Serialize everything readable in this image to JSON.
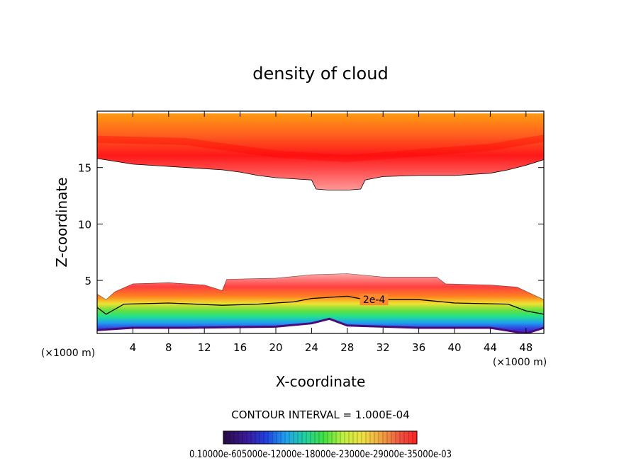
{
  "chart_data": {
    "type": "heatmap",
    "title": "density of cloud",
    "xlabel": "X-coordinate",
    "ylabel": "Z-coordinate",
    "x_unit_left": "(×1000 m)",
    "x_unit_right": "(×1000 m)",
    "xlim": [
      0,
      50
    ],
    "ylim": [
      0.3,
      20
    ],
    "xticks": [
      4,
      8,
      12,
      16,
      20,
      24,
      28,
      32,
      36,
      40,
      44,
      48
    ],
    "yticks": [
      5,
      10,
      15
    ],
    "grid": false,
    "contour_interval_text": "CONTOUR INTERVAL = 1.000E-04",
    "contour_label": "2e-4",
    "contour_label_pos": [
      31,
      3.3
    ],
    "colorbar_labels_text": "0.10000e-605000e-12000e-18000e-23000e-29000e-35000e-03",
    "colorbar_colors": [
      "#2a0a44",
      "#3a1a9a",
      "#2040e0",
      "#20a0f0",
      "#20d0a0",
      "#40e040",
      "#a0f040",
      "#f0f040",
      "#f0c040",
      "#f08040",
      "#f04040",
      "#ff2020"
    ],
    "upper_band": {
      "top_z": 19.8,
      "outer_edge_z": [
        [
          0,
          15.8
        ],
        [
          4,
          15.3
        ],
        [
          8,
          15.1
        ],
        [
          10,
          15.0
        ],
        [
          14,
          14.8
        ],
        [
          16,
          14.6
        ],
        [
          18,
          14.3
        ],
        [
          20,
          14.1
        ],
        [
          22,
          14.0
        ],
        [
          24,
          13.9
        ],
        [
          24.5,
          13.1
        ],
        [
          26,
          13.0
        ],
        [
          28,
          13.0
        ],
        [
          29.5,
          13.1
        ],
        [
          30,
          13.9
        ],
        [
          32,
          14.2
        ],
        [
          36,
          14.3
        ],
        [
          40,
          14.3
        ],
        [
          44,
          14.5
        ],
        [
          46,
          14.8
        ],
        [
          48,
          15.2
        ],
        [
          50,
          15.7
        ]
      ],
      "core_z": [
        [
          0,
          17.5
        ],
        [
          10,
          17.3
        ],
        [
          20,
          16.2
        ],
        [
          28,
          15.8
        ],
        [
          36,
          16.3
        ],
        [
          44,
          16.8
        ],
        [
          50,
          17.6
        ]
      ]
    },
    "lower_band": {
      "top_edge_z": [
        [
          0,
          3.8
        ],
        [
          1,
          3.3
        ],
        [
          2,
          4.0
        ],
        [
          4,
          4.7
        ],
        [
          8,
          4.8
        ],
        [
          12,
          4.6
        ],
        [
          14,
          4.1
        ],
        [
          14.5,
          5.1
        ],
        [
          20,
          5.2
        ],
        [
          24,
          5.5
        ],
        [
          28,
          5.6
        ],
        [
          32,
          5.3
        ],
        [
          36,
          5.3
        ],
        [
          38,
          5.3
        ],
        [
          39,
          4.7
        ],
        [
          44,
          4.6
        ],
        [
          47,
          4.4
        ],
        [
          50,
          3.3
        ]
      ],
      "contour_2e4_z": [
        [
          0,
          2.6
        ],
        [
          1,
          2.0
        ],
        [
          3,
          2.9
        ],
        [
          8,
          3.0
        ],
        [
          14,
          2.8
        ],
        [
          18,
          2.9
        ],
        [
          22,
          3.1
        ],
        [
          24,
          3.4
        ],
        [
          28,
          3.6
        ],
        [
          30,
          3.3
        ],
        [
          36,
          3.3
        ],
        [
          40,
          3.0
        ],
        [
          46,
          2.9
        ],
        [
          48,
          2.3
        ],
        [
          50,
          2.0
        ]
      ],
      "bottom_edge_z": [
        [
          0,
          0.6
        ],
        [
          4,
          0.8
        ],
        [
          10,
          0.8
        ],
        [
          20,
          0.9
        ],
        [
          24,
          1.2
        ],
        [
          26,
          1.6
        ],
        [
          28,
          1.0
        ],
        [
          36,
          0.8
        ],
        [
          44,
          0.8
        ],
        [
          48,
          0.3
        ],
        [
          50,
          0.8
        ]
      ]
    }
  }
}
